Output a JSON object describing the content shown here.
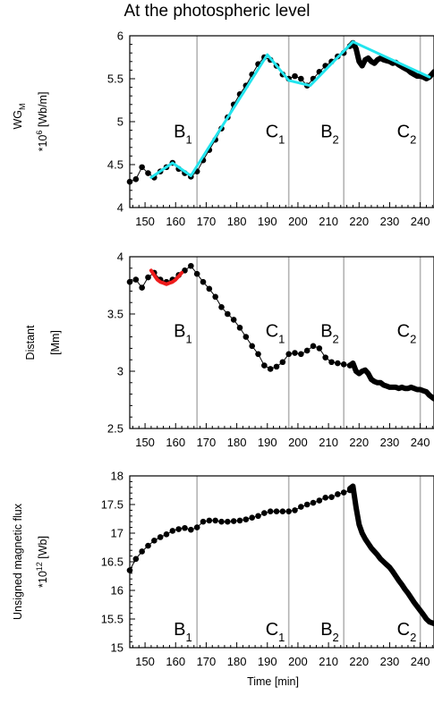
{
  "title": "At the photospheric level",
  "colors": {
    "markers": "#000000",
    "fit_cyan": "#22e5ee",
    "fit_red": "#ee1c1c",
    "event_line": "#b4b4b4"
  },
  "chart_data": [
    {
      "type": "line",
      "ylabel_lines": [
        "WG",
        "M",
        "*10",
        "6",
        " [Wb/m]"
      ],
      "ylabel_parts": {
        "line1": "WG",
        "line1_sub": "M",
        "line2_a": "*10",
        "line2_sup": "6",
        "line2_b": " [Wb/m]"
      },
      "xlim": [
        145,
        244.5
      ],
      "ylim": [
        4,
        6
      ],
      "yticks": [
        "4",
        "4.5",
        "5",
        "5.5",
        "6"
      ],
      "yticks_values": [
        4,
        4.5,
        5,
        5.5,
        6
      ],
      "xticks": [
        "150",
        "160",
        "170",
        "180",
        "190",
        "200",
        "210",
        "220",
        "230",
        "240"
      ],
      "xticks_values": [
        150,
        160,
        170,
        180,
        190,
        200,
        210,
        220,
        230,
        240
      ],
      "events": [
        {
          "name": "B",
          "sub": "1",
          "x": 167,
          "label_y": 4.82
        },
        {
          "name": "C",
          "sub": "1",
          "x": 197,
          "label_y": 4.82
        },
        {
          "name": "B",
          "sub": "2",
          "x": 215,
          "label_y": 4.82
        },
        {
          "name": "C",
          "sub": "2",
          "x": 240,
          "label_y": 4.82
        }
      ],
      "series": [
        {
          "style": "markers",
          "x": [
            145,
            147,
            149,
            151,
            153,
            155,
            157,
            159,
            161,
            163,
            165,
            167,
            169,
            171,
            173,
            175,
            177,
            179,
            181,
            183,
            185,
            187,
            189,
            191,
            193,
            195,
            197,
            199,
            201,
            203,
            205,
            207,
            209,
            211,
            213,
            215,
            217
          ],
          "y": [
            4.3,
            4.33,
            4.47,
            4.4,
            4.35,
            4.42,
            4.47,
            4.52,
            4.45,
            4.4,
            4.36,
            4.42,
            4.55,
            4.67,
            4.79,
            4.92,
            5.05,
            5.2,
            5.32,
            5.42,
            5.55,
            5.67,
            5.75,
            5.72,
            5.65,
            5.55,
            5.5,
            5.53,
            5.5,
            5.42,
            5.5,
            5.58,
            5.65,
            5.7,
            5.76,
            5.8,
            5.88
          ]
        },
        {
          "style": "dense",
          "x": [
            217,
            218,
            219,
            220,
            221,
            222,
            223,
            224,
            225,
            226,
            227,
            228,
            229,
            230,
            231,
            232,
            233,
            234,
            235,
            236,
            237,
            238,
            239,
            240,
            241,
            242,
            243,
            244.5
          ],
          "y": [
            5.88,
            5.92,
            5.85,
            5.7,
            5.65,
            5.72,
            5.74,
            5.7,
            5.68,
            5.72,
            5.74,
            5.72,
            5.71,
            5.7,
            5.68,
            5.69,
            5.66,
            5.64,
            5.62,
            5.6,
            5.57,
            5.55,
            5.53,
            5.53,
            5.52,
            5.5,
            5.52,
            5.58
          ]
        },
        {
          "style": "fit",
          "color": "#22e5ee",
          "x": [
            152,
            159,
            165,
            190,
            197,
            204,
            218,
            243
          ],
          "y": [
            4.35,
            4.52,
            4.37,
            5.78,
            5.48,
            5.42,
            5.93,
            5.52
          ]
        }
      ]
    },
    {
      "type": "line",
      "ylabel_parts": {
        "line1": "Distant",
        "line2": "[Mm]"
      },
      "xlim": [
        145,
        244.5
      ],
      "ylim": [
        2.5,
        4
      ],
      "yticks": [
        "2.5",
        "3",
        "3.5",
        "4"
      ],
      "yticks_values": [
        2.5,
        3,
        3.5,
        4
      ],
      "xticks": [
        "150",
        "160",
        "170",
        "180",
        "190",
        "200",
        "210",
        "220",
        "230",
        "240"
      ],
      "xticks_values": [
        150,
        160,
        170,
        180,
        190,
        200,
        210,
        220,
        230,
        240
      ],
      "events": [
        {
          "name": "B",
          "sub": "1",
          "x": 167,
          "label_y": 3.3
        },
        {
          "name": "C",
          "sub": "1",
          "x": 197,
          "label_y": 3.3
        },
        {
          "name": "B",
          "sub": "2",
          "x": 215,
          "label_y": 3.3
        },
        {
          "name": "C",
          "sub": "2",
          "x": 240,
          "label_y": 3.3
        }
      ],
      "series": [
        {
          "style": "markers",
          "x": [
            145,
            147,
            149,
            151,
            153,
            155,
            157,
            159,
            161,
            163,
            165,
            167,
            169,
            171,
            173,
            175,
            177,
            179,
            181,
            183,
            185,
            187,
            189,
            191,
            193,
            195,
            197,
            199,
            201,
            203,
            205,
            207,
            209,
            211,
            213,
            215,
            217
          ],
          "y": [
            3.78,
            3.8,
            3.73,
            3.82,
            3.86,
            3.8,
            3.78,
            3.8,
            3.84,
            3.88,
            3.92,
            3.85,
            3.78,
            3.72,
            3.65,
            3.56,
            3.5,
            3.45,
            3.38,
            3.3,
            3.22,
            3.15,
            3.05,
            3.02,
            3.04,
            3.08,
            3.15,
            3.16,
            3.15,
            3.18,
            3.22,
            3.2,
            3.12,
            3.08,
            3.07,
            3.06,
            3.05
          ]
        },
        {
          "style": "dense",
          "x": [
            217,
            218,
            219,
            220,
            221,
            222,
            223,
            224,
            225,
            226,
            227,
            228,
            229,
            230,
            231,
            232,
            233,
            234,
            235,
            236,
            237,
            238,
            239,
            240,
            241,
            242,
            243,
            244.5
          ],
          "y": [
            3.05,
            3.07,
            3.0,
            2.98,
            3.0,
            3.01,
            2.98,
            2.93,
            2.91,
            2.9,
            2.9,
            2.88,
            2.87,
            2.86,
            2.86,
            2.86,
            2.85,
            2.86,
            2.85,
            2.85,
            2.86,
            2.85,
            2.84,
            2.84,
            2.83,
            2.82,
            2.79,
            2.76
          ]
        },
        {
          "style": "fit",
          "color": "#ee1c1c",
          "x": [
            152,
            153,
            154,
            155,
            156,
            157,
            158,
            159,
            160,
            161,
            162
          ],
          "y": [
            3.88,
            3.84,
            3.8,
            3.78,
            3.77,
            3.76,
            3.77,
            3.78,
            3.8,
            3.83,
            3.86
          ]
        }
      ]
    },
    {
      "type": "line",
      "ylabel_parts": {
        "line1": "Unsigned magnetic flux",
        "line2_a": "*10",
        "line2_sup": "12",
        "line2_b": "  [Wb]"
      },
      "xlim": [
        145,
        244.5
      ],
      "ylim": [
        15,
        18
      ],
      "yticks": [
        "15",
        "15.5",
        "16",
        "16.5",
        "17",
        "17.5",
        "18"
      ],
      "yticks_values": [
        15,
        15.5,
        16,
        16.5,
        17,
        17.5,
        18
      ],
      "xticks": [
        "150",
        "160",
        "170",
        "180",
        "190",
        "200",
        "210",
        "220",
        "230",
        "240"
      ],
      "xticks_values": [
        150,
        160,
        170,
        180,
        190,
        200,
        210,
        220,
        230,
        240
      ],
      "xlabel": "Time [min]",
      "events": [
        {
          "name": "B",
          "sub": "1",
          "x": 167,
          "label_y": 15.22
        },
        {
          "name": "C",
          "sub": "1",
          "x": 197,
          "label_y": 15.22
        },
        {
          "name": "B",
          "sub": "2",
          "x": 215,
          "label_y": 15.22
        },
        {
          "name": "C",
          "sub": "2",
          "x": 240,
          "label_y": 15.22
        }
      ],
      "series": [
        {
          "style": "markers",
          "x": [
            145,
            147,
            149,
            151,
            153,
            155,
            157,
            159,
            161,
            163,
            165,
            167,
            169,
            171,
            173,
            175,
            177,
            179,
            181,
            183,
            185,
            187,
            189,
            191,
            193,
            195,
            197,
            199,
            201,
            203,
            205,
            207,
            209,
            211,
            213,
            215,
            217
          ],
          "y": [
            16.35,
            16.55,
            16.68,
            16.78,
            16.87,
            16.93,
            16.98,
            17.04,
            17.07,
            17.09,
            17.06,
            17.1,
            17.2,
            17.22,
            17.22,
            17.2,
            17.2,
            17.21,
            17.22,
            17.24,
            17.27,
            17.3,
            17.35,
            17.38,
            17.38,
            17.38,
            17.38,
            17.4,
            17.46,
            17.5,
            17.53,
            17.57,
            17.62,
            17.63,
            17.68,
            17.71,
            17.75
          ]
        },
        {
          "style": "dense",
          "x": [
            217,
            218,
            219,
            220,
            221,
            222,
            223,
            224,
            225,
            226,
            227,
            228,
            229,
            230,
            231,
            232,
            233,
            234,
            235,
            236,
            237,
            238,
            239,
            240,
            241,
            242,
            243,
            244.5
          ],
          "y": [
            17.78,
            17.82,
            17.45,
            17.15,
            17.0,
            16.9,
            16.82,
            16.74,
            16.68,
            16.62,
            16.55,
            16.5,
            16.45,
            16.4,
            16.33,
            16.25,
            16.17,
            16.1,
            16.02,
            15.95,
            15.87,
            15.79,
            15.72,
            15.65,
            15.58,
            15.5,
            15.45,
            15.42
          ]
        }
      ]
    }
  ]
}
